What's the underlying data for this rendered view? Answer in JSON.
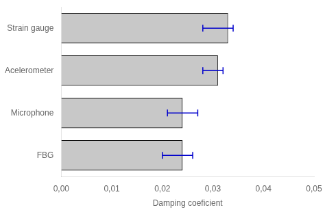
{
  "chart_data": {
    "type": "bar",
    "orientation": "horizontal",
    "categories": [
      "Strain gauge",
      "Acelerometer",
      "Microphone",
      "FBG"
    ],
    "values": [
      0.033,
      0.031,
      0.024,
      0.024
    ],
    "color": "#c8c8c8",
    "error_bars": {
      "centers": [
        0.031,
        0.03,
        0.024,
        0.023
      ],
      "errors": [
        0.003,
        0.002,
        0.003,
        0.003
      ],
      "color": "#0000cc"
    },
    "xlabel": "Damping coeficient",
    "xlim": [
      0.0,
      0.05
    ],
    "xticks": [
      {
        "value": 0.0,
        "label": "0,00"
      },
      {
        "value": 0.01,
        "label": "0,01"
      },
      {
        "value": 0.02,
        "label": "0,02"
      },
      {
        "value": 0.03,
        "label": "0,03"
      },
      {
        "value": 0.04,
        "label": "0,04"
      },
      {
        "value": 0.05,
        "label": "0,05"
      }
    ],
    "grid": false
  }
}
